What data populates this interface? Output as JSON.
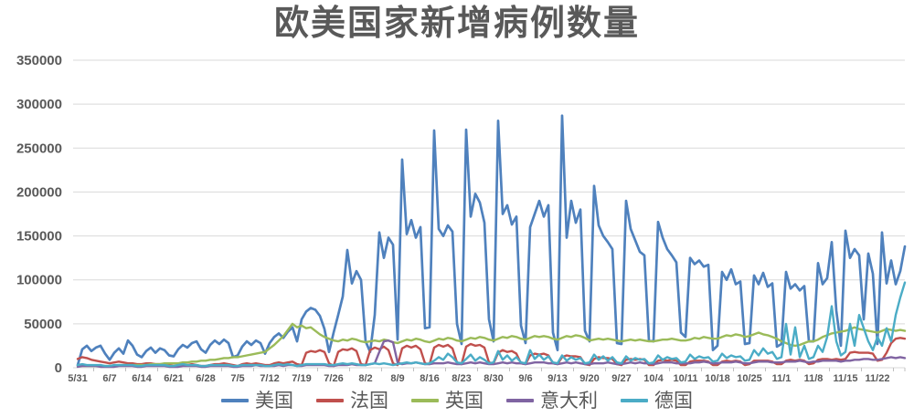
{
  "chart": {
    "title": "欧美国家新增病例数量"
  },
  "colors": {
    "text": "#595959",
    "gridline": "#D9D9D9",
    "axis_tick": "#BFBFBF",
    "background": "#FFFFFF"
  },
  "chart_data": {
    "type": "line",
    "title": "欧美国家新增病例数量",
    "xlabel": "",
    "ylabel": "",
    "ylim": [
      0,
      350000
    ],
    "grid": true,
    "legend_position": "bottom",
    "y_ticks": [
      0,
      50000,
      100000,
      150000,
      200000,
      250000,
      300000,
      350000
    ],
    "x_labels": [
      "5/31",
      "6/7",
      "6/14",
      "6/21",
      "6/28",
      "7/5",
      "7/12",
      "7/19",
      "7/26",
      "8/2",
      "8/9",
      "8/16",
      "8/23",
      "8/30",
      "9/6",
      "9/13",
      "9/20",
      "9/27",
      "10/4",
      "10/11",
      "10/18",
      "10/25",
      "11/1",
      "11/8",
      "11/15",
      "11/22"
    ],
    "x_frequency": "daily",
    "label_step_days": 7,
    "series": [
      {
        "id": "usa",
        "label": "美国",
        "color": "#4F81BD",
        "values": [
          3000,
          21000,
          25000,
          19000,
          23000,
          25000,
          16000,
          9000,
          17000,
          22000,
          16000,
          31000,
          25000,
          15000,
          12000,
          19000,
          23000,
          17000,
          22000,
          20000,
          14000,
          13000,
          21000,
          26000,
          23000,
          28000,
          30000,
          21000,
          17000,
          26000,
          31000,
          27000,
          32000,
          28000,
          12000,
          14000,
          24000,
          30000,
          26000,
          31000,
          28000,
          16000,
          28000,
          35000,
          39000,
          34000,
          41000,
          46000,
          30000,
          55000,
          64000,
          68000,
          66000,
          59000,
          44000,
          18000,
          40000,
          60000,
          81000,
          134000,
          96000,
          110000,
          100000,
          30000,
          18000,
          60000,
          154000,
          125000,
          148000,
          140000,
          32000,
          237000,
          152000,
          168000,
          148000,
          160000,
          45000,
          46000,
          270000,
          158000,
          150000,
          162000,
          155000,
          50000,
          27000,
          271000,
          172000,
          198000,
          188000,
          165000,
          55000,
          30000,
          281000,
          175000,
          185000,
          163000,
          172000,
          48000,
          28000,
          160000,
          175000,
          190000,
          172000,
          185000,
          40000,
          20000,
          287000,
          148000,
          190000,
          165000,
          180000,
          42000,
          30000,
          207000,
          162000,
          150000,
          143000,
          135000,
          28000,
          27000,
          190000,
          158000,
          145000,
          132000,
          128000,
          31000,
          30000,
          166000,
          148000,
          135000,
          128000,
          120000,
          40000,
          35000,
          125000,
          118000,
          122000,
          115000,
          117000,
          20000,
          25000,
          109000,
          100000,
          112000,
          95000,
          98000,
          27000,
          28000,
          105000,
          95000,
          108000,
          92000,
          96000,
          24000,
          27000,
          109000,
          90000,
          95000,
          88000,
          93000,
          30000,
          30000,
          119000,
          95000,
          102000,
          143000,
          65000,
          25000,
          156000,
          125000,
          135000,
          128000,
          55000,
          130000,
          107000,
          27000,
          154000,
          96000,
          122000,
          95000,
          110000,
          138000
        ]
      },
      {
        "id": "france",
        "label": "法国",
        "color": "#C0504D",
        "values": [
          10000,
          12000,
          11000,
          9000,
          8000,
          7000,
          6000,
          5000,
          6000,
          7000,
          6000,
          5000,
          5000,
          4000,
          4000,
          5000,
          5000,
          4000,
          4000,
          4000,
          3000,
          2000,
          3000,
          4000,
          3000,
          4000,
          3000,
          2000,
          2000,
          3000,
          4000,
          4000,
          5000,
          4000,
          3000,
          2000,
          4000,
          5000,
          4000,
          5000,
          4000,
          3000,
          3000,
          5000,
          6000,
          5000,
          6000,
          7000,
          4000,
          3000,
          17000,
          19000,
          18000,
          20000,
          18000,
          5000,
          2000,
          18000,
          21000,
          20000,
          22000,
          19000,
          4000,
          3000,
          20000,
          23000,
          21000,
          24000,
          20000,
          5000,
          3000,
          22000,
          25000,
          23000,
          25000,
          21000,
          5000,
          4000,
          23000,
          26000,
          24000,
          26000,
          22000,
          6000,
          4000,
          24000,
          27000,
          25000,
          26000,
          23000,
          6000,
          5000,
          17000,
          20000,
          18000,
          19000,
          16000,
          5000,
          4000,
          14000,
          16000,
          15000,
          16000,
          14000,
          5000,
          4000,
          12000,
          14000,
          13000,
          13000,
          12000,
          4000,
          3000,
          10000,
          12000,
          11000,
          11000,
          10000,
          4000,
          3000,
          9000,
          10000,
          9000,
          10000,
          9000,
          3000,
          3000,
          8000,
          9000,
          8000,
          9000,
          8000,
          3000,
          3000,
          7000,
          8000,
          8000,
          8000,
          7000,
          3000,
          3000,
          7000,
          8000,
          7000,
          8000,
          7000,
          3000,
          4000,
          8000,
          8000,
          8000,
          8000,
          7000,
          4000,
          4000,
          8000,
          9000,
          8000,
          9000,
          8000,
          4000,
          5000,
          9000,
          10000,
          10000,
          9000,
          10000,
          9000,
          10000,
          17000,
          18000,
          17000,
          17000,
          17000,
          16000,
          8000,
          9000,
          17000,
          28000,
          33000,
          34000,
          33000
        ]
      },
      {
        "id": "uk",
        "label": "英国",
        "color": "#9BBB59",
        "values": [
          2000,
          2000,
          2000,
          2000,
          2000,
          2000,
          2000,
          2000,
          2000,
          3000,
          3000,
          3000,
          3000,
          3000,
          3000,
          3000,
          4000,
          4000,
          4000,
          5000,
          5000,
          5000,
          5000,
          6000,
          6000,
          7000,
          7000,
          8000,
          8000,
          9000,
          9000,
          10000,
          11000,
          11000,
          12000,
          12000,
          13000,
          14000,
          15000,
          16000,
          17000,
          18000,
          22000,
          26000,
          31000,
          36000,
          43000,
          50000,
          46000,
          48000,
          45000,
          46000,
          42000,
          38000,
          35000,
          33000,
          31000,
          30000,
          32000,
          31000,
          33000,
          32000,
          30000,
          29000,
          30000,
          31000,
          30000,
          32000,
          31000,
          29000,
          28000,
          30000,
          32000,
          31000,
          33000,
          32000,
          30000,
          29000,
          31000,
          33000,
          32000,
          34000,
          33000,
          31000,
          30000,
          32000,
          34000,
          33000,
          35000,
          34000,
          32000,
          31000,
          33000,
          35000,
          34000,
          36000,
          35000,
          33000,
          32000,
          34000,
          36000,
          35000,
          36000,
          35000,
          33000,
          32000,
          34000,
          36000,
          35000,
          37000,
          36000,
          34000,
          31000,
          32000,
          33000,
          32000,
          33000,
          32000,
          31000,
          30000,
          31000,
          32000,
          31000,
          32000,
          31000,
          30000,
          30000,
          31000,
          32000,
          32000,
          33000,
          32000,
          31000,
          31000,
          32000,
          34000,
          33000,
          35000,
          34000,
          33000,
          33000,
          35000,
          37000,
          36000,
          38000,
          37000,
          35000,
          36000,
          38000,
          40000,
          38000,
          37000,
          35000,
          33000,
          30000,
          28000,
          26000,
          25000,
          26000,
          28000,
          30000,
          30000,
          32000,
          35000,
          37000,
          39000,
          40000,
          41000,
          42000,
          44000,
          46000,
          44000,
          43000,
          42000,
          41000,
          40000,
          42000,
          44000,
          43000,
          42000,
          43000,
          42000
        ]
      },
      {
        "id": "italy",
        "label": "意大利",
        "color": "#8064A2",
        "values": [
          1000,
          2000,
          2000,
          2000,
          2000,
          1000,
          1000,
          1000,
          1000,
          2000,
          2000,
          2000,
          2000,
          1000,
          1000,
          2000,
          2000,
          2000,
          2000,
          2000,
          1000,
          1000,
          1000,
          2000,
          2000,
          2000,
          2000,
          1000,
          1000,
          2000,
          2000,
          2000,
          2000,
          2000,
          1000,
          1000,
          2000,
          2000,
          2000,
          3000,
          2000,
          2000,
          2000,
          2000,
          3000,
          2000,
          3000,
          3000,
          2000,
          2000,
          3000,
          3000,
          3000,
          3000,
          3000,
          2000,
          2000,
          3000,
          3000,
          3000,
          4000,
          3000,
          3000,
          3000,
          4000,
          5000,
          18000,
          30000,
          31000,
          29000,
          6000,
          4000,
          5000,
          5000,
          6000,
          5000,
          4000,
          4000,
          5000,
          5000,
          5000,
          6000,
          5000,
          4000,
          4000,
          5000,
          6000,
          5000,
          6000,
          5000,
          4000,
          4000,
          5000,
          6000,
          5000,
          6000,
          5000,
          5000,
          4000,
          5000,
          6000,
          6000,
          6000,
          5000,
          5000,
          4000,
          5000,
          6000,
          5000,
          6000,
          5000,
          4000,
          4000,
          5000,
          5000,
          5000,
          6000,
          5000,
          4000,
          4000,
          5000,
          6000,
          5000,
          6000,
          5000,
          5000,
          4000,
          5000,
          6000,
          6000,
          6000,
          5000,
          5000,
          5000,
          5000,
          6000,
          6000,
          7000,
          6000,
          5000,
          5000,
          6000,
          6000,
          6000,
          7000,
          6000,
          5000,
          5000,
          6000,
          7000,
          7000,
          7000,
          6000,
          6000,
          6000,
          7000,
          7000,
          7000,
          8000,
          7000,
          6000,
          7000,
          7000,
          8000,
          8000,
          8000,
          8000,
          7000,
          8000,
          8000,
          9000,
          9000,
          10000,
          10000,
          9000,
          9000,
          10000,
          11000,
          12000,
          11000,
          12000,
          11000
        ]
      },
      {
        "id": "germany",
        "label": "德国",
        "color": "#4BACC6",
        "values": [
          3000,
          4000,
          3000,
          3000,
          3000,
          3000,
          2000,
          2000,
          3000,
          3000,
          3000,
          3000,
          3000,
          2000,
          2000,
          3000,
          3000,
          3000,
          3000,
          3000,
          2000,
          2000,
          3000,
          4000,
          3000,
          3000,
          3000,
          2000,
          2000,
          3000,
          3000,
          3000,
          3000,
          3000,
          2000,
          2000,
          3000,
          3000,
          3000,
          3000,
          3000,
          2000,
          2000,
          3000,
          4000,
          3000,
          4000,
          3000,
          2000,
          3000,
          4000,
          4000,
          4000,
          4000,
          4000,
          3000,
          3000,
          4000,
          5000,
          4000,
          5000,
          4000,
          3000,
          3000,
          4000,
          5000,
          4000,
          5000,
          4000,
          3000,
          4000,
          5000,
          6000,
          5000,
          6000,
          5000,
          4000,
          5000,
          8000,
          12000,
          9000,
          16000,
          12000,
          6000,
          5000,
          10000,
          15000,
          8000,
          12000,
          9000,
          5000,
          6000,
          19000,
          9000,
          14000,
          8000,
          12000,
          6000,
          5000,
          20000,
          10000,
          15000,
          9000,
          13000,
          6000,
          5000,
          14000,
          8000,
          12000,
          9000,
          11000,
          5000,
          6000,
          15000,
          9000,
          13000,
          8000,
          12000,
          6000,
          5000,
          13000,
          8000,
          11000,
          9000,
          10000,
          5000,
          6000,
          14000,
          9000,
          12000,
          10000,
          11000,
          6000,
          7000,
          15000,
          10000,
          13000,
          11000,
          12000,
          7000,
          8000,
          16000,
          11000,
          14000,
          12000,
          13000,
          8000,
          9000,
          20000,
          14000,
          22000,
          16000,
          18000,
          10000,
          12000,
          50000,
          15000,
          46000,
          12000,
          25000,
          10000,
          12000,
          25000,
          18000,
          35000,
          70000,
          30000,
          14000,
          18000,
          50000,
          25000,
          60000,
          45000,
          30000,
          20000,
          35000,
          25000,
          45000,
          30000,
          60000,
          80000,
          97000
        ]
      }
    ]
  }
}
